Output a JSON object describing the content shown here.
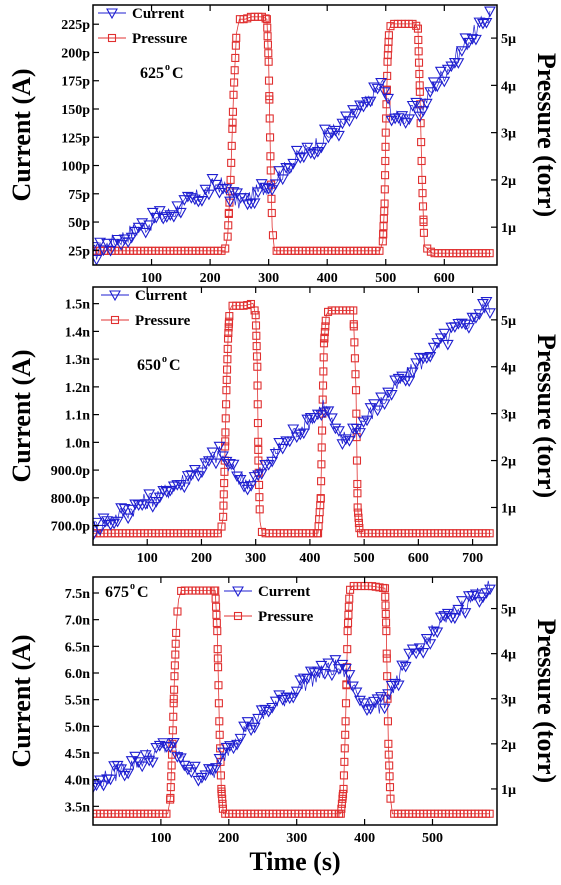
{
  "chart_data": [
    {
      "type": "line",
      "xlabel": "",
      "ylabel_left": "Current (A)",
      "ylabel_right": "Pressure (torr)",
      "annotation": "625",
      "annotation_unit": "oC",
      "xlim": [
        0,
        690
      ],
      "ylim_left": [
        12,
        242
      ],
      "ylim_right": [
        0.2,
        5.7
      ],
      "xticks": [
        100,
        200,
        300,
        400,
        500,
        600
      ],
      "yticks_left": [
        {
          "v": 25,
          "label": "25p"
        },
        {
          "v": 50,
          "label": "50p"
        },
        {
          "v": 75,
          "label": "75p"
        },
        {
          "v": 100,
          "label": "100p"
        },
        {
          "v": 125,
          "label": "125p"
        },
        {
          "v": 150,
          "label": "150p"
        },
        {
          "v": 175,
          "label": "175p"
        },
        {
          "v": 200,
          "label": "200p"
        },
        {
          "v": 225,
          "label": "225p"
        }
      ],
      "yticks_right": [
        {
          "v": 1,
          "label": "1µ"
        },
        {
          "v": 2,
          "label": "2µ"
        },
        {
          "v": 3,
          "label": "3µ"
        },
        {
          "v": 4,
          "label": "4µ"
        },
        {
          "v": 5,
          "label": "5µ"
        }
      ],
      "legend": {
        "position": "top-left"
      },
      "series": [
        {
          "name": "Current",
          "axis": "left",
          "color": "#1f1fd0",
          "marker": "triangle-down",
          "x": [
            0,
            20,
            40,
            60,
            80,
            100,
            120,
            140,
            160,
            180,
            200,
            215,
            230,
            245,
            260,
            275,
            290,
            310,
            330,
            350,
            370,
            390,
            410,
            430,
            450,
            470,
            485,
            495,
            505,
            520,
            540,
            560,
            580,
            600,
            620,
            640,
            660,
            680
          ],
          "y": [
            22,
            28,
            34,
            40,
            45,
            50,
            55,
            60,
            66,
            72,
            80,
            84,
            78,
            68,
            70,
            74,
            80,
            88,
            97,
            107,
            115,
            122,
            130,
            137,
            147,
            156,
            166,
            172,
            152,
            140,
            145,
            150,
            168,
            182,
            196,
            210,
            222,
            235
          ]
        },
        {
          "name": "Pressure",
          "axis": "right",
          "color": "#e03030",
          "marker": "square",
          "x": [
            0,
            50,
            100,
            150,
            200,
            225,
            230,
            235,
            240,
            245,
            250,
            260,
            270,
            280,
            290,
            297,
            300,
            303,
            306,
            310,
            330,
            360,
            400,
            440,
            470,
            490,
            495,
            498,
            500,
            503,
            506,
            510,
            520,
            540,
            550,
            555,
            558,
            562,
            566,
            580,
            620,
            680
          ],
          "y": [
            0.5,
            0.5,
            0.5,
            0.5,
            0.5,
            0.5,
            0.8,
            2.0,
            3.8,
            5.1,
            5.4,
            5.4,
            5.45,
            5.45,
            5.45,
            5.4,
            4.5,
            2.5,
            1.0,
            0.5,
            0.5,
            0.5,
            0.5,
            0.5,
            0.5,
            0.5,
            0.7,
            1.5,
            3.0,
            4.5,
            5.2,
            5.3,
            5.3,
            5.3,
            5.3,
            5.2,
            4.0,
            2.0,
            0.6,
            0.45,
            0.45,
            0.45
          ]
        }
      ]
    },
    {
      "type": "line",
      "xlabel": "",
      "ylabel_left": "Current (A)",
      "ylabel_right": "Pressure (torr)",
      "annotation": "650",
      "annotation_unit": "oC",
      "xlim": [
        0,
        745
      ],
      "ylim_left": [
        630,
        1560
      ],
      "ylim_right": [
        0.2,
        5.7
      ],
      "xticks": [
        100,
        200,
        300,
        400,
        500,
        600,
        700
      ],
      "yticks_left": [
        {
          "v": 700,
          "label": "700.0p"
        },
        {
          "v": 800,
          "label": "800.0p"
        },
        {
          "v": 900,
          "label": "900.0p"
        },
        {
          "v": 1000,
          "label": "1.0n"
        },
        {
          "v": 1100,
          "label": "1.1n"
        },
        {
          "v": 1200,
          "label": "1.2n"
        },
        {
          "v": 1300,
          "label": "1.3n"
        },
        {
          "v": 1400,
          "label": "1.4n"
        },
        {
          "v": 1500,
          "label": "1.5n"
        }
      ],
      "yticks_right": [
        {
          "v": 1,
          "label": "1µ"
        },
        {
          "v": 2,
          "label": "2µ"
        },
        {
          "v": 3,
          "label": "3µ"
        },
        {
          "v": 4,
          "label": "4µ"
        },
        {
          "v": 5,
          "label": "5µ"
        }
      ],
      "legend": {
        "position": "top-left"
      },
      "series": [
        {
          "name": "Current",
          "axis": "left",
          "color": "#1f1fd0",
          "marker": "triangle-down",
          "x": [
            0,
            20,
            40,
            60,
            80,
            100,
            120,
            140,
            160,
            180,
            200,
            220,
            235,
            250,
            265,
            280,
            300,
            320,
            340,
            360,
            380,
            400,
            415,
            425,
            435,
            445,
            460,
            480,
            500,
            520,
            540,
            560,
            580,
            600,
            620,
            640,
            660,
            680,
            700,
            720,
            735
          ],
          "y": [
            690,
            710,
            730,
            750,
            770,
            790,
            810,
            830,
            855,
            880,
            910,
            945,
            960,
            910,
            880,
            860,
            870,
            920,
            970,
            1010,
            1050,
            1080,
            1110,
            1140,
            1100,
            1040,
            1010,
            1040,
            1080,
            1120,
            1160,
            1200,
            1240,
            1280,
            1320,
            1350,
            1390,
            1420,
            1450,
            1480,
            1500
          ]
        },
        {
          "name": "Pressure",
          "axis": "right",
          "color": "#e03030",
          "marker": "square",
          "x": [
            0,
            50,
            100,
            150,
            200,
            235,
            240,
            243,
            246,
            249,
            252,
            256,
            265,
            280,
            295,
            300,
            303,
            305,
            308,
            312,
            330,
            360,
            400,
            415,
            420,
            423,
            426,
            430,
            435,
            450,
            470,
            480,
            485,
            488,
            492,
            510,
            560,
            620,
            700,
            735
          ],
          "y": [
            0.45,
            0.45,
            0.45,
            0.45,
            0.45,
            0.45,
            0.8,
            2.0,
            3.5,
            4.6,
            5.2,
            5.3,
            5.3,
            5.3,
            5.35,
            5.1,
            4.0,
            2.0,
            0.7,
            0.45,
            0.45,
            0.45,
            0.45,
            0.45,
            1.2,
            3.0,
            4.5,
            5.1,
            5.2,
            5.2,
            5.2,
            5.2,
            3.5,
            1.0,
            0.45,
            0.45,
            0.45,
            0.45,
            0.45,
            0.45
          ]
        }
      ]
    },
    {
      "type": "line",
      "xlabel": "Time (s)",
      "ylabel_left": "Current (A)",
      "ylabel_right": "Pressure (torr)",
      "annotation": "675",
      "annotation_unit": "oC",
      "xlim": [
        0,
        595
      ],
      "ylim_left": [
        3.15,
        7.8
      ],
      "ylim_right": [
        0.2,
        5.7
      ],
      "xticks": [
        100,
        200,
        300,
        400,
        500
      ],
      "yticks_left": [
        {
          "v": 3.5,
          "label": "3.5n"
        },
        {
          "v": 4.0,
          "label": "4.0n"
        },
        {
          "v": 4.5,
          "label": "4.5n"
        },
        {
          "v": 5.0,
          "label": "5.0n"
        },
        {
          "v": 5.5,
          "label": "5.5n"
        },
        {
          "v": 6.0,
          "label": "6.0n"
        },
        {
          "v": 6.5,
          "label": "6.5n"
        },
        {
          "v": 7.0,
          "label": "7.0n"
        },
        {
          "v": 7.5,
          "label": "7.5n"
        }
      ],
      "yticks_right": [
        {
          "v": 1,
          "label": "1µ"
        },
        {
          "v": 2,
          "label": "2µ"
        },
        {
          "v": 3,
          "label": "3µ"
        },
        {
          "v": 4,
          "label": "4µ"
        },
        {
          "v": 5,
          "label": "5µ"
        }
      ],
      "legend": {
        "position": "top-center"
      },
      "series": [
        {
          "name": "Current",
          "axis": "left",
          "color": "#1f1fd0",
          "marker": "triangle-down",
          "x": [
            0,
            15,
            30,
            45,
            60,
            75,
            90,
            105,
            115,
            125,
            135,
            150,
            165,
            180,
            195,
            210,
            230,
            250,
            270,
            290,
            310,
            330,
            345,
            360,
            370,
            380,
            395,
            410,
            420,
            430,
            440,
            455,
            470,
            490,
            510,
            530,
            550,
            570,
            585
          ],
          "y": [
            3.9,
            4.0,
            4.1,
            4.2,
            4.3,
            4.4,
            4.5,
            4.6,
            4.65,
            4.5,
            4.3,
            4.15,
            4.1,
            4.15,
            4.5,
            4.8,
            5.0,
            5.2,
            5.4,
            5.6,
            5.8,
            5.95,
            6.05,
            6.1,
            6.0,
            5.8,
            5.5,
            5.4,
            5.35,
            5.5,
            5.7,
            6.0,
            6.3,
            6.6,
            6.9,
            7.1,
            7.3,
            7.5,
            7.6
          ]
        },
        {
          "name": "Pressure",
          "axis": "right",
          "color": "#e03030",
          "marker": "square",
          "x": [
            0,
            40,
            80,
            110,
            114,
            117,
            120,
            123,
            126,
            130,
            140,
            160,
            180,
            183,
            186,
            189,
            192,
            200,
            240,
            280,
            320,
            365,
            369,
            372,
            375,
            378,
            382,
            390,
            410,
            430,
            432,
            435,
            438,
            441,
            460,
            500,
            550,
            585
          ],
          "y": [
            0.45,
            0.45,
            0.45,
            0.45,
            0.8,
            2.0,
            3.5,
            4.7,
            5.2,
            5.4,
            5.4,
            5.4,
            5.4,
            4.5,
            2.5,
            1.0,
            0.45,
            0.45,
            0.45,
            0.45,
            0.45,
            0.45,
            1.0,
            2.5,
            4.5,
            5.4,
            5.5,
            5.5,
            5.5,
            5.45,
            4.5,
            2.0,
            0.8,
            0.45,
            0.45,
            0.45,
            0.45,
            0.45
          ]
        }
      ]
    }
  ]
}
